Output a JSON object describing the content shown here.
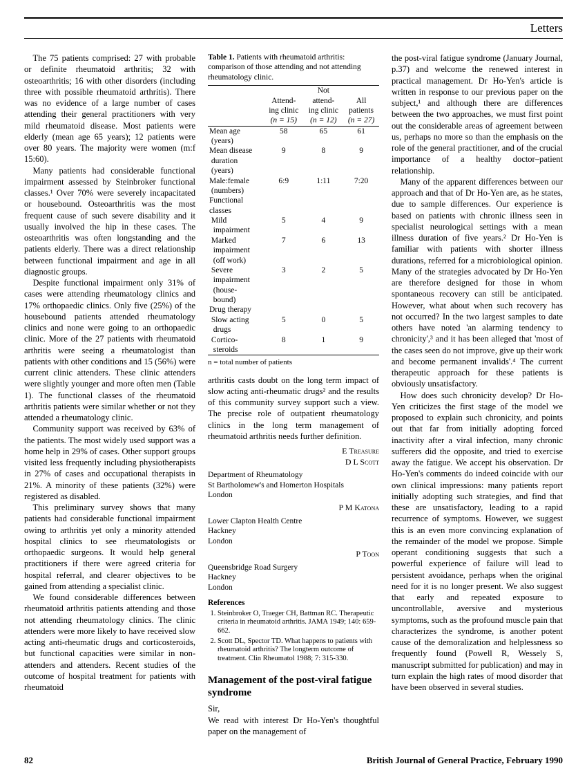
{
  "header": {
    "section": "Letters"
  },
  "footer": {
    "page": "82",
    "journal": "British Journal of General Practice, February 1990"
  },
  "col1": {
    "p1": "The 75 patients comprised: 27 with probable or definite rheumatoid arthritis; 32 with osteoarthritis; 16 with other disorders (including three with possible rheumatoid arthritis). There was no evidence of a large number of cases attending their general practitioners with very mild rheumatoid disease. Most patients were elderly (mean age 65 years); 12 patients were over 80 years. The majority were women (m:f 15:60).",
    "p2": "Many patients had considerable functional impairment assessed by Steinbroker functional classes.¹ Over 70% were severely incapacitated or housebound. Osteoarthritis was the most frequent cause of such severe disability and it usually involved the hip in these cases. The osteoarthritis was often longstanding and the patients elderly. There was a direct relationship between functional impairment and age in all diagnostic groups.",
    "p3": "Despite functional impairment only 31% of cases were attending rheumatology clinics and 17% orthopaedic clinics. Only five (25%) of the housebound patients attended rheumatology clinics and none were going to an orthopaedic clinic. More of the 27 patients with rheumatoid arthritis were seeing a rheumatologist than patients with other conditions and 15 (56%) were current clinic attenders. These clinic attenders were slightly younger and more often men (Table 1). The functional classes of the rheumatoid arthritis patients were similar whether or not they attended a rheumatology clinic.",
    "p4": "Community support was received by 63% of the patients. The most widely used support was a home help in 29% of cases. Other support groups visited less frequently including physiotherapists in 27% of cases and occupational therapists in 21%. A minority of these patients (32%) were registered as disabled.",
    "p5": "This preliminary survey shows that many patients had considerable functional impairment owing to arthritis yet only a minority attended hospital clinics to see rheumatologists or orthopaedic surgeons. It would help general practitioners if there were agreed criteria for hospital referral, and clearer objectives to be gained from attending a specialist clinic.",
    "p6": "We found considerable differences between rheumatoid arthritis patients attending and those not attending rheumatology clinics. The clinic attenders were more likely to have received slow acting anti-rheumatic drugs and corticosteroids, but functional capacities were similar in non-attenders and attenders. Recent studies of the outcome of hospital treatment for patients with rheumatoid"
  },
  "table": {
    "caption_bold": "Table 1.",
    "caption": " Patients with rheumatoid arthritis: comparison of those attending and not attending rheumatology clinic.",
    "headers": {
      "c1": "Attend-\ning clinic",
      "c1n": "(n = 15)",
      "c2top": "Not",
      "c2": "attend-\ning clinic",
      "c2n": "(n = 12)",
      "c3": "All\npatients",
      "c3n": "(n = 27)"
    },
    "rows": [
      {
        "label": "Mean age\n (years)",
        "a": "58",
        "b": "65",
        "c": "61"
      },
      {
        "label": "Mean disease\n duration\n (years)",
        "a": "9",
        "b": "8",
        "c": "9"
      },
      {
        "label": "Male:female\n (numbers)",
        "a": "6:9",
        "b": "1:11",
        "c": "7:20"
      },
      {
        "label": "Functional\nclasses",
        "a": "",
        "b": "",
        "c": ""
      },
      {
        "label": " Mild\n  impairment",
        "a": "5",
        "b": "4",
        "c": "9"
      },
      {
        "label": " Marked\n  impairment\n  (off work)",
        "a": "7",
        "b": "6",
        "c": "13"
      },
      {
        "label": " Severe\n  impairment\n  (house-\n  bound)",
        "a": "3",
        "b": "2",
        "c": "5"
      },
      {
        "label": "Drug therapy",
        "a": "",
        "b": "",
        "c": ""
      },
      {
        "label": " Slow acting\n  drugs",
        "a": "5",
        "b": "0",
        "c": "5"
      },
      {
        "label": " Cortico-\n  steroids",
        "a": "8",
        "b": "1",
        "c": "9"
      }
    ],
    "footnote": "n = total number of patients"
  },
  "col2": {
    "p1": "arthritis casts doubt on the long term impact of slow acting anti-rheumatic drugs² and the results of this community survey support such a view. The precise role of outpatient rheumatology clinics in the long term management of rheumatoid arthritis needs further definition.",
    "authors1": "E Treasure",
    "authors2": "D L Scott",
    "affil1": "Department of Rheumatology\nSt Bartholomew's and Homerton Hospitals\nLondon",
    "author3": "P M Katona",
    "affil2": "Lower Clapton Health Centre\nHackney\nLondon",
    "author4": "P Toon",
    "affil3": "Queensbridge Road Surgery\nHackney\nLondon",
    "refs_head": "References",
    "ref1": "Steinbroker O, Traeger CH, Battman RC. Therapeutic criteria in rheumatoid arthritis. JAMA 1949; 140: 659-662.",
    "ref2": "Scott DL, Spector TD. What happens to patients with rheumatoid arthritis? The longterm outcome of treatment. Clin Rheumatol 1988; 7: 315-330.",
    "title": "Management of the post-viral fatigue syndrome",
    "p2a": "Sir,",
    "p2b": "We read with interest Dr Ho-Yen's thoughtful paper on the management of"
  },
  "col3": {
    "p1": "the post-viral fatigue syndrome (January Journal, p.37) and welcome the renewed interest in practical management. Dr Ho-Yen's article is written in response to our previous paper on the subject,¹ and although there are differences between the two approaches, we must first point out the considerable areas of agreement between us, perhaps no more so than the emphasis on the role of the general practitioner, and of the crucial importance of a healthy doctor–patient relationship.",
    "p2": "Many of the apparent differences between our approach and that of Dr Ho-Yen are, as he states, due to sample differences. Our experience is based on patients with chronic illness seen in specialist neurological settings with a mean illness duration of five years.² Dr Ho-Yen is familiar with patients with shorter illness durations, referred for a microbiological opinion. Many of the strategies advocated by Dr Ho-Yen are therefore designed for those in whom spontaneous recovery can still be anticipated. However, what about when such recovery has not occurred? In the two largest samples to date others have noted 'an alarming tendency to chronicity',³ and it has been alleged that 'most of the cases seen do not improve, give up their work and become permanent invalids'.⁴ The current therapeutic approach for these patients is obviously unsatisfactory.",
    "p3": "How does such chronicity develop? Dr Ho-Yen criticizes the first stage of the model we proposed to explain such chronicity, and points out that far from initially adopting forced inactivity after a viral infection, many chronic sufferers did the opposite, and tried to exercise away the fatigue. We accept his observation. Dr Ho-Yen's comments do indeed coincide with our own clinical impressions: many patients report initially adopting such strategies, and find that these are unsatisfactory, leading to a rapid recurrence of symptoms. However, we suggest this is an even more convincing explanation of the remainder of the model we propose. Simple operant conditioning suggests that such a powerful experience of failure will lead to persistent avoidance, perhaps when the original need for it is no longer present. We also suggest that early and repeated exposure to uncontrollable, aversive and mysterious symptoms, such as the profound muscle pain that characterizes the syndrome, is another potent cause of the demoralization and helplessness so frequently found (Powell R, Wessely S, manuscript submitted for publication) and may in turn explain the high rates of mood disorder that have been observed in several studies."
  }
}
